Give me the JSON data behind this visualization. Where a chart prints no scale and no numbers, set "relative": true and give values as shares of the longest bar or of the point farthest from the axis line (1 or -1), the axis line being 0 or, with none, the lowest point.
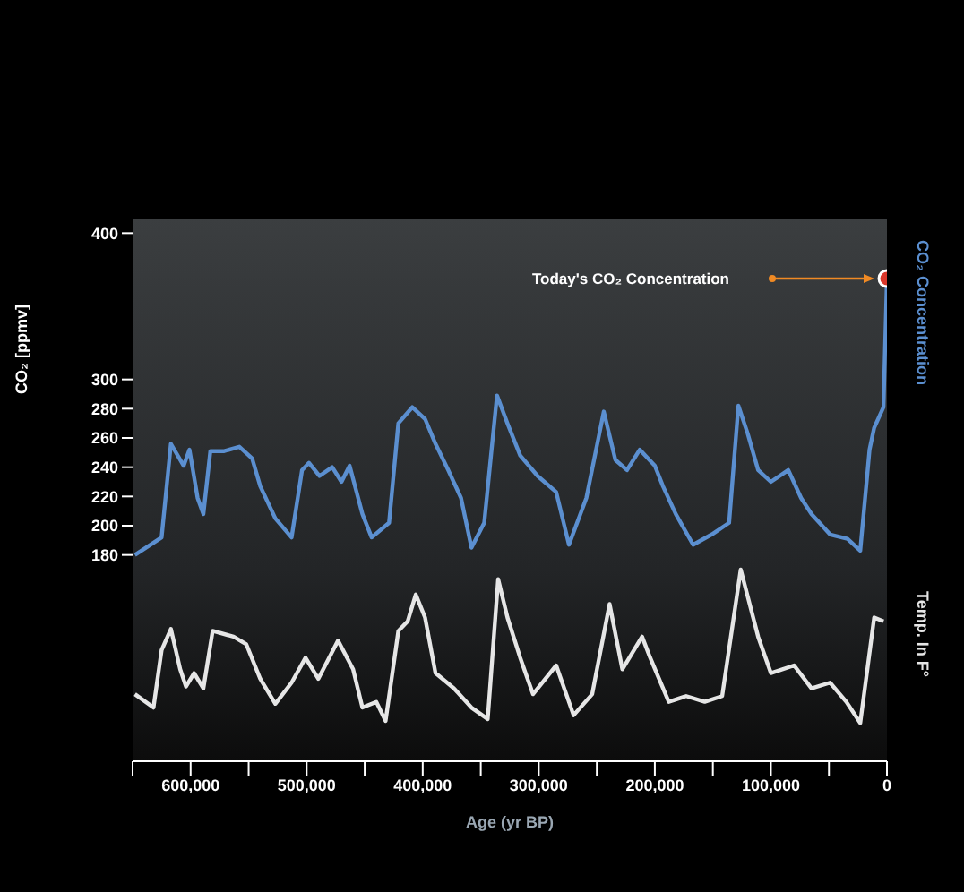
{
  "chart_data": [
    {
      "type": "line",
      "ylabel": "CO₂ [ppmv]",
      "xlim": [
        650000,
        0
      ],
      "ylim": [
        170,
        410
      ],
      "yticks": [
        180,
        200,
        220,
        240,
        260,
        280,
        300,
        400
      ],
      "tick_labels": "y",
      "grid": false,
      "legend": "right",
      "annotations": [
        "Today's CO₂ Concentration"
      ],
      "series": [
        {
          "name": "CO₂ Concentration",
          "color": "#5b8fd0",
          "x": [
            648000,
            625000,
            617000,
            606000,
            601000,
            594000,
            589000,
            583000,
            571000,
            558000,
            547000,
            540000,
            527000,
            513000,
            504000,
            498000,
            489000,
            478000,
            470000,
            463000,
            452000,
            444000,
            429000,
            421000,
            409000,
            398000,
            389000,
            378000,
            367000,
            358000,
            347000,
            336000,
            327000,
            316000,
            301000,
            285000,
            274000,
            259000,
            244000,
            234000,
            224000,
            213000,
            200000,
            193000,
            182000,
            167000,
            151000,
            136000,
            128000,
            120000,
            111000,
            100000,
            85000,
            74000,
            65000,
            49000,
            34000,
            23000,
            15000,
            11000,
            3000,
            0
          ],
          "values": [
            180,
            192,
            256,
            241,
            252,
            219,
            208,
            251,
            251,
            254,
            246,
            227,
            205,
            192,
            238,
            243,
            234,
            240,
            230,
            241,
            208,
            192,
            202,
            270,
            281,
            273,
            256,
            238,
            219,
            185,
            202,
            289,
            270,
            248,
            234,
            223,
            187,
            219,
            278,
            245,
            238,
            252,
            241,
            227,
            208,
            187,
            194,
            202,
            282,
            263,
            238,
            230,
            238,
            219,
            208,
            194,
            191,
            183,
            252,
            267,
            281,
            369
          ]
        }
      ]
    },
    {
      "type": "line",
      "relative": true,
      "xlim": [
        650000,
        0
      ],
      "xticks": [
        {
          "value": 650000,
          "label": null
        },
        {
          "value": 600000,
          "label": "600,000"
        },
        {
          "value": 550000,
          "label": null
        },
        {
          "value": 500000,
          "label": "500,000"
        },
        {
          "value": 450000,
          "label": null
        },
        {
          "value": 400000,
          "label": "400,000"
        },
        {
          "value": 350000,
          "label": null
        },
        {
          "value": 300000,
          "label": "300,000"
        },
        {
          "value": 250000,
          "label": null
        },
        {
          "value": 200000,
          "label": "200,000"
        },
        {
          "value": 150000,
          "label": null
        },
        {
          "value": 100000,
          "label": "100,000"
        },
        {
          "value": 50000,
          "label": null
        },
        0
      ],
      "xlabel": "Age (yr BP)",
      "tick_labels": "x",
      "grid": false,
      "legend": "right",
      "series": [
        {
          "name": "Temp. In F°",
          "color": "#e6e6e6",
          "x": [
            648000,
            632000,
            625000,
            617000,
            609000,
            604000,
            597000,
            589000,
            581000,
            563000,
            552000,
            540000,
            527000,
            513000,
            501000,
            490000,
            473000,
            460000,
            452000,
            440000,
            432000,
            421000,
            413000,
            406000,
            398000,
            389000,
            373000,
            358000,
            344000,
            335000,
            327000,
            316000,
            305000,
            285000,
            270000,
            254000,
            239000,
            228000,
            211000,
            204000,
            188000,
            173000,
            157000,
            142000,
            126000,
            111000,
            100000,
            80000,
            65000,
            49000,
            35000,
            23000,
            11000,
            3000
          ],
          "values": [
            0.35,
            0.28,
            0.58,
            0.69,
            0.48,
            0.39,
            0.46,
            0.38,
            0.68,
            0.65,
            0.61,
            0.43,
            0.3,
            0.41,
            0.54,
            0.43,
            0.63,
            0.48,
            0.28,
            0.31,
            0.21,
            0.68,
            0.73,
            0.87,
            0.75,
            0.46,
            0.38,
            0.28,
            0.22,
            0.95,
            0.75,
            0.54,
            0.35,
            0.5,
            0.24,
            0.35,
            0.82,
            0.48,
            0.65,
            0.54,
            0.31,
            0.34,
            0.31,
            0.34,
            1.0,
            0.65,
            0.46,
            0.5,
            0.38,
            0.41,
            0.31,
            0.2,
            0.75,
            0.73
          ]
        }
      ]
    }
  ]
}
